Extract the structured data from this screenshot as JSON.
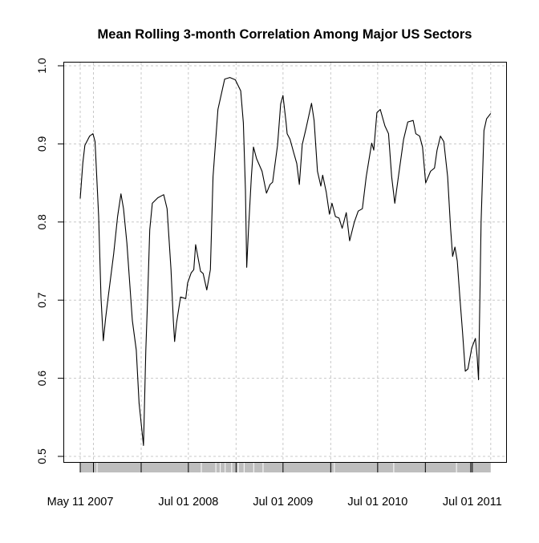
{
  "chart_data": {
    "type": "line",
    "title": "Mean Rolling 3-month Correlation Among Major US Sectors",
    "xlabel": "",
    "ylabel": "",
    "ylim": [
      0.5,
      1.0
    ],
    "xlim": [
      "2007-05-11",
      "2011-09-10"
    ],
    "grid": true,
    "y_ticks": [
      "0.5",
      "0.6",
      "0.7",
      "0.8",
      "0.9",
      "1.0"
    ],
    "x_tick_labels": [
      {
        "date": "2007-05-11",
        "label": "May 11 2007"
      },
      {
        "date": "2008-07-01",
        "label": "Jul 01 2008"
      },
      {
        "date": "2009-07-01",
        "label": "Jul 01 2009"
      },
      {
        "date": "2010-07-01",
        "label": "Jul 01 2010"
      },
      {
        "date": "2011-07-01",
        "label": "Jul 01 2011"
      }
    ],
    "x_grid_dates": [
      "2007-05-11",
      "2007-07-01",
      "2008-01-01",
      "2008-07-01",
      "2009-01-01",
      "2009-07-01",
      "2010-01-01",
      "2010-07-01",
      "2011-01-01",
      "2011-07-01",
      "2011-09-10"
    ],
    "line_color": "#000000",
    "grid_color": "#c8c8c8",
    "series": [
      {
        "x": [
          "2007-05-11",
          "2007-05-21",
          "2007-05-29",
          "2007-06-16",
          "2007-06-29",
          "2007-07-07",
          "2007-07-21",
          "2007-07-30",
          "2007-08-08",
          "2007-08-17",
          "2007-08-27",
          "2007-09-17",
          "2007-10-02",
          "2007-10-15",
          "2007-10-25",
          "2007-11-07",
          "2007-11-28",
          "2007-12-13",
          "2007-12-24",
          "2008-01-10",
          "2008-01-19",
          "2008-01-26",
          "2008-02-03",
          "2008-02-13",
          "2008-03-05",
          "2008-03-28",
          "2008-04-10",
          "2008-04-25",
          "2008-05-04",
          "2008-05-09",
          "2008-05-16",
          "2008-06-01",
          "2008-06-21",
          "2008-06-28",
          "2008-07-12",
          "2008-07-22",
          "2008-07-29",
          "2008-08-17",
          "2008-08-27",
          "2008-09-10",
          "2008-09-24",
          "2008-10-04",
          "2008-10-23",
          "2008-11-18",
          "2008-12-08",
          "2008-12-29",
          "2009-01-19",
          "2009-01-29",
          "2009-02-06",
          "2009-02-11",
          "2009-02-18",
          "2009-03-01",
          "2009-03-09",
          "2009-03-21",
          "2009-04-11",
          "2009-04-28",
          "2009-05-12",
          "2009-05-22",
          "2009-06-10",
          "2009-06-22",
          "2009-07-01",
          "2009-07-13",
          "2009-07-17",
          "2009-07-28",
          "2009-08-11",
          "2009-08-23",
          "2009-09-02",
          "2009-09-13",
          "2009-09-28",
          "2009-10-19",
          "2009-10-29",
          "2009-11-11",
          "2009-11-24",
          "2009-12-01",
          "2009-12-15",
          "2009-12-27",
          "2010-01-06",
          "2010-01-19",
          "2010-02-02",
          "2010-02-14",
          "2010-03-02",
          "2010-03-15",
          "2010-04-02",
          "2010-04-17",
          "2010-05-03",
          "2010-05-18",
          "2010-06-08",
          "2010-06-16",
          "2010-06-28",
          "2010-07-11",
          "2010-07-29",
          "2010-08-12",
          "2010-08-24",
          "2010-09-05",
          "2010-09-19",
          "2010-10-09",
          "2010-10-25",
          "2010-11-15",
          "2010-11-25",
          "2010-12-10",
          "2010-12-21",
          "2011-01-02",
          "2011-01-21",
          "2011-02-05",
          "2011-02-15",
          "2011-02-28",
          "2011-03-13",
          "2011-03-28",
          "2011-04-08",
          "2011-04-16",
          "2011-04-25",
          "2011-05-04",
          "2011-05-14",
          "2011-05-24",
          "2011-06-04",
          "2011-06-14",
          "2011-06-29",
          "2011-07-13",
          "2011-07-20",
          "2011-07-25",
          "2011-07-30",
          "2011-08-04",
          "2011-08-15",
          "2011-08-25",
          "2011-09-10"
        ],
        "y": [
          0.83,
          0.876,
          0.898,
          0.91,
          0.913,
          0.903,
          0.807,
          0.704,
          0.648,
          0.677,
          0.704,
          0.759,
          0.807,
          0.836,
          0.817,
          0.773,
          0.674,
          0.636,
          0.568,
          0.514,
          0.636,
          0.704,
          0.79,
          0.824,
          0.831,
          0.835,
          0.817,
          0.739,
          0.674,
          0.647,
          0.67,
          0.704,
          0.702,
          0.722,
          0.735,
          0.739,
          0.771,
          0.737,
          0.734,
          0.713,
          0.739,
          0.858,
          0.944,
          0.983,
          0.985,
          0.982,
          0.968,
          0.927,
          0.841,
          0.742,
          0.79,
          0.858,
          0.896,
          0.881,
          0.865,
          0.837,
          0.848,
          0.851,
          0.899,
          0.951,
          0.962,
          0.927,
          0.913,
          0.906,
          0.889,
          0.875,
          0.848,
          0.899,
          0.92,
          0.952,
          0.93,
          0.865,
          0.846,
          0.86,
          0.838,
          0.81,
          0.824,
          0.807,
          0.805,
          0.792,
          0.812,
          0.776,
          0.8,
          0.814,
          0.817,
          0.858,
          0.901,
          0.892,
          0.94,
          0.944,
          0.923,
          0.913,
          0.858,
          0.824,
          0.858,
          0.906,
          0.928,
          0.93,
          0.913,
          0.91,
          0.896,
          0.85,
          0.865,
          0.869,
          0.892,
          0.91,
          0.903,
          0.858,
          0.793,
          0.756,
          0.768,
          0.75,
          0.704,
          0.66,
          0.609,
          0.612,
          0.639,
          0.651,
          0.626,
          0.598,
          0.697,
          0.8,
          0.917,
          0.932,
          0.939
        ]
      }
    ]
  }
}
